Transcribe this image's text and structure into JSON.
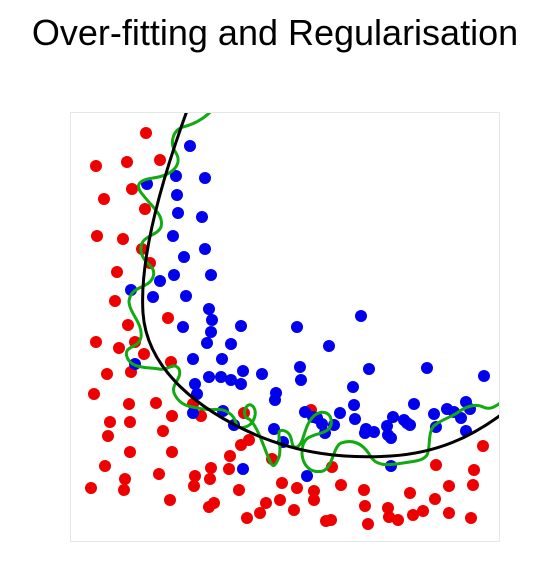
{
  "title": "Over-fitting and Regularisation",
  "colors": {
    "class_a": "#ee0000",
    "class_b": "#0000ee",
    "regularised_boundary": "#000000",
    "overfit_boundary": "#11aa11"
  },
  "chart_data": {
    "type": "scatter",
    "title": "",
    "xlabel": "",
    "ylabel": "",
    "xlim": [
      0,
      430
    ],
    "ylim": [
      0,
      430
    ],
    "grid": false,
    "series": [
      {
        "points": [
          [
            75,
            20
          ],
          [
            25,
            53
          ],
          [
            56,
            49
          ],
          [
            89,
            47
          ],
          [
            33,
            86
          ],
          [
            61,
            76
          ],
          [
            74,
            96
          ],
          [
            26,
            123
          ],
          [
            52,
            126
          ],
          [
            71,
            136
          ],
          [
            46,
            159
          ],
          [
            79,
            150
          ],
          [
            44,
            188
          ],
          [
            57,
            212
          ],
          [
            25,
            229
          ],
          [
            48,
            235
          ],
          [
            73,
            241
          ],
          [
            97,
            205
          ],
          [
            64,
            229
          ],
          [
            36,
            261
          ],
          [
            60,
            259
          ],
          [
            100,
            249
          ],
          [
            23,
            281
          ],
          [
            58,
            291
          ],
          [
            85,
            290
          ],
          [
            101,
            303
          ],
          [
            39,
            309
          ],
          [
            37,
            323
          ],
          [
            59,
            309
          ],
          [
            122,
            291
          ],
          [
            59,
            339
          ],
          [
            92,
            318
          ],
          [
            34,
            353
          ],
          [
            101,
            339
          ],
          [
            130,
            303
          ],
          [
            173,
            300
          ],
          [
            170,
            332
          ],
          [
            159,
            343
          ],
          [
            140,
            355
          ],
          [
            54,
            366
          ],
          [
            88,
            361
          ],
          [
            124,
            363
          ],
          [
            158,
            356
          ],
          [
            178,
            327
          ],
          [
            20,
            375
          ],
          [
            53,
            377
          ],
          [
            99,
            387
          ],
          [
            123,
            373
          ],
          [
            139,
            366
          ],
          [
            168,
            377
          ],
          [
            201,
            346
          ],
          [
            240,
            297
          ],
          [
            211,
            370
          ],
          [
            226,
            375
          ],
          [
            195,
            390
          ],
          [
            143,
            390
          ],
          [
            138,
            394
          ],
          [
            209,
            387
          ],
          [
            223,
            397
          ],
          [
            189,
            400
          ],
          [
            176,
            405
          ],
          [
            243,
            378
          ],
          [
            243,
            387
          ],
          [
            261,
            354
          ],
          [
            270,
            372
          ],
          [
            293,
            377
          ],
          [
            339,
            380
          ],
          [
            294,
            393
          ],
          [
            317,
            395
          ],
          [
            318,
            404
          ],
          [
            342,
            402
          ],
          [
            352,
            398
          ],
          [
            365,
            352
          ],
          [
            364,
            386
          ],
          [
            378,
            373
          ],
          [
            402,
            372
          ],
          [
            378,
            400
          ],
          [
            400,
            405
          ],
          [
            260,
            407
          ],
          [
            255,
            408
          ],
          [
            412,
            333
          ],
          [
            403,
            357
          ],
          [
            297,
            411
          ],
          [
            327,
            407
          ]
        ]
      },
      {
        "points": [
          [
            119,
            33
          ],
          [
            76,
            71
          ],
          [
            105,
            63
          ],
          [
            106,
            82
          ],
          [
            134,
            65
          ],
          [
            107,
            100
          ],
          [
            131,
            104
          ],
          [
            102,
            123
          ],
          [
            113,
            144
          ],
          [
            134,
            136
          ],
          [
            103,
            162
          ],
          [
            140,
            162
          ],
          [
            89,
            168
          ],
          [
            60,
            177
          ],
          [
            82,
            184
          ],
          [
            115,
            183
          ],
          [
            138,
            196
          ],
          [
            141,
            207
          ],
          [
            140,
            219
          ],
          [
            112,
            214
          ],
          [
            170,
            213
          ],
          [
            226,
            214
          ],
          [
            290,
            203
          ],
          [
            136,
            230
          ],
          [
            160,
            231
          ],
          [
            258,
            233
          ],
          [
            122,
            246
          ],
          [
            151,
            246
          ],
          [
            138,
            264
          ],
          [
            172,
            258
          ],
          [
            150,
            264
          ],
          [
            191,
            261
          ],
          [
            229,
            254
          ],
          [
            230,
            267
          ],
          [
            64,
            251
          ],
          [
            124,
            271
          ],
          [
            126,
            281
          ],
          [
            160,
            267
          ],
          [
            170,
            271
          ],
          [
            298,
            256
          ],
          [
            205,
            280
          ],
          [
            282,
            274
          ],
          [
            283,
            292
          ],
          [
            269,
            300
          ],
          [
            246,
            305
          ],
          [
            343,
            291
          ],
          [
            413,
            263
          ],
          [
            356,
            255
          ],
          [
            395,
            289
          ],
          [
            363,
            301
          ],
          [
            399,
            296
          ],
          [
            383,
            299
          ],
          [
            395,
            318
          ],
          [
            204,
            287
          ],
          [
            234,
            299
          ],
          [
            152,
            298
          ],
          [
            163,
            312
          ],
          [
            122,
            300
          ],
          [
            242,
            304
          ],
          [
            251,
            311
          ],
          [
            254,
            320
          ],
          [
            263,
            312
          ],
          [
            284,
            306
          ],
          [
            295,
            316
          ],
          [
            316,
            313
          ],
          [
            322,
            304
          ],
          [
            336,
            310
          ],
          [
            303,
            319
          ],
          [
            294,
            320
          ],
          [
            317,
            322
          ],
          [
            320,
            325
          ],
          [
            333,
            307
          ],
          [
            339,
            312
          ],
          [
            365,
            314
          ],
          [
            376,
            296
          ],
          [
            390,
            305
          ],
          [
            212,
            329
          ],
          [
            203,
            316
          ],
          [
            172,
            356
          ],
          [
            236,
            363
          ],
          [
            320,
            353
          ]
        ]
      }
    ]
  }
}
